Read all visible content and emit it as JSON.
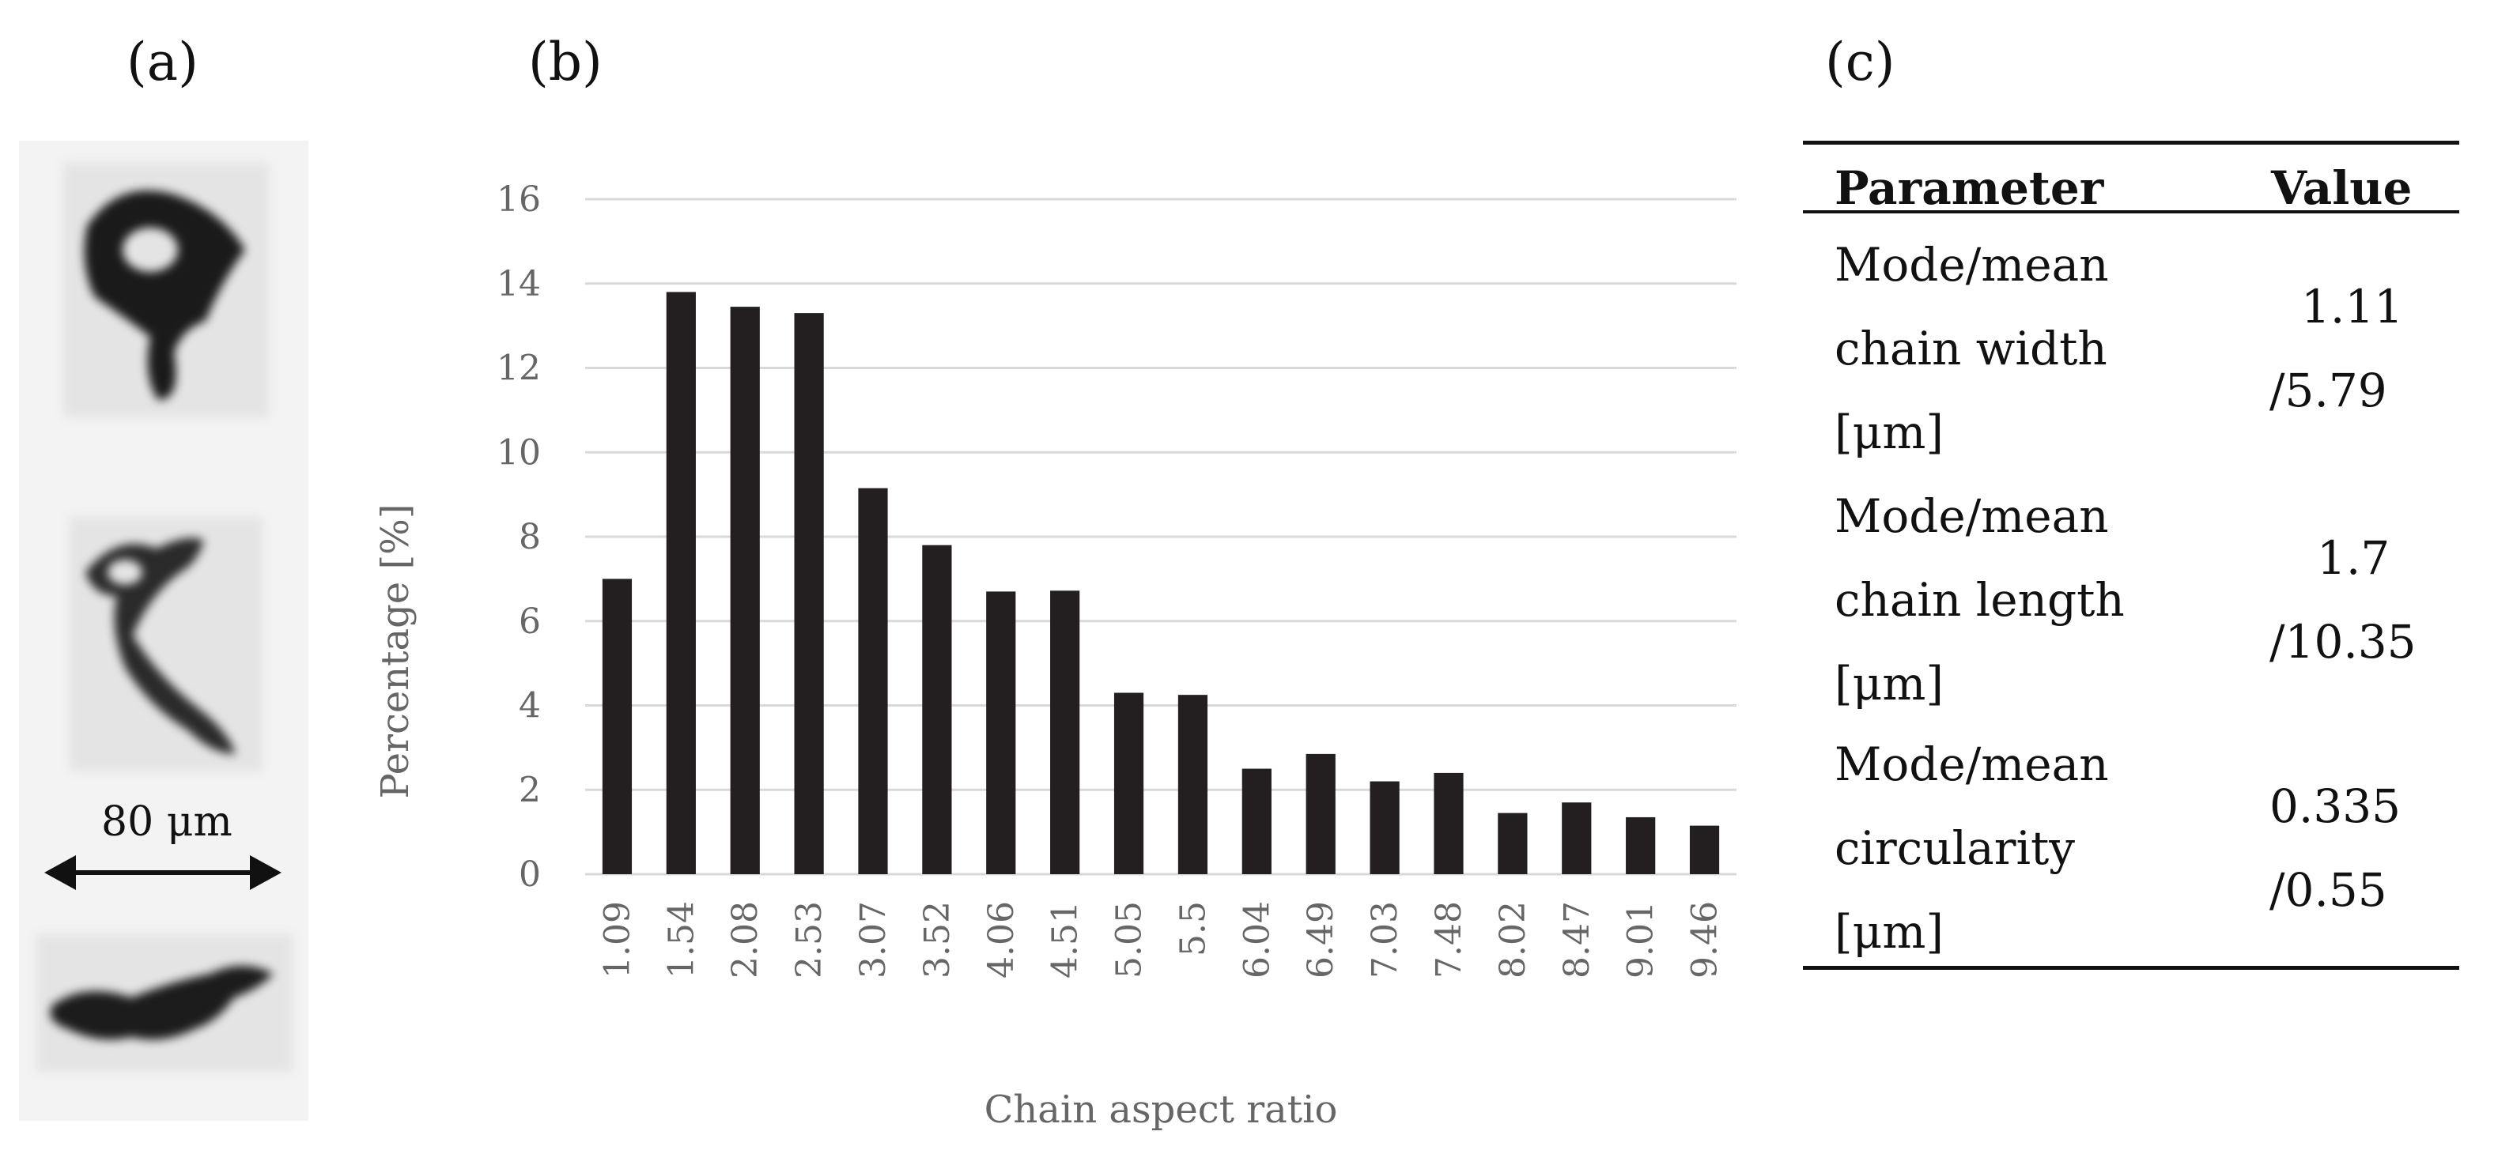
{
  "panels": {
    "a": "(a)",
    "b": "(b)",
    "c": "(c)"
  },
  "scale_bar": {
    "label": "80 μm"
  },
  "chart_data": {
    "type": "bar",
    "title": "",
    "xlabel": "Chain aspect ratio",
    "ylabel": "Percentage [%]",
    "ylim": [
      0,
      16
    ],
    "yticks": [
      0,
      2,
      4,
      6,
      8,
      10,
      12,
      14,
      16
    ],
    "grid": true,
    "bar_color": "#231f20",
    "categories": [
      "1.09",
      "1.54",
      "2.08",
      "2.53",
      "3.07",
      "3.52",
      "4.06",
      "4.51",
      "5.05",
      "5.5",
      "6.04",
      "6.49",
      "7.03",
      "7.48",
      "8.02",
      "8.47",
      "9.01",
      "9.46"
    ],
    "values": [
      7.0,
      13.8,
      13.45,
      13.3,
      9.15,
      7.8,
      6.7,
      6.72,
      4.3,
      4.25,
      2.5,
      2.85,
      2.2,
      2.4,
      1.45,
      1.7,
      1.35,
      1.15
    ]
  },
  "table": {
    "headers": {
      "parameter": "Parameter",
      "value": "Value"
    },
    "rows": [
      {
        "param_lines": [
          "Mode/mean",
          "chain width",
          "[μm]"
        ],
        "value_lines": [
          "1.11",
          "/5.79"
        ]
      },
      {
        "param_lines": [
          "Mode/mean",
          "chain length",
          "[μm]"
        ],
        "value_lines": [
          "1.7",
          "/10.35"
        ]
      },
      {
        "param_lines": [
          "Mode/mean",
          "circularity",
          "[μm]"
        ],
        "value_lines": [
          "0.335",
          "/0.55"
        ]
      }
    ]
  }
}
